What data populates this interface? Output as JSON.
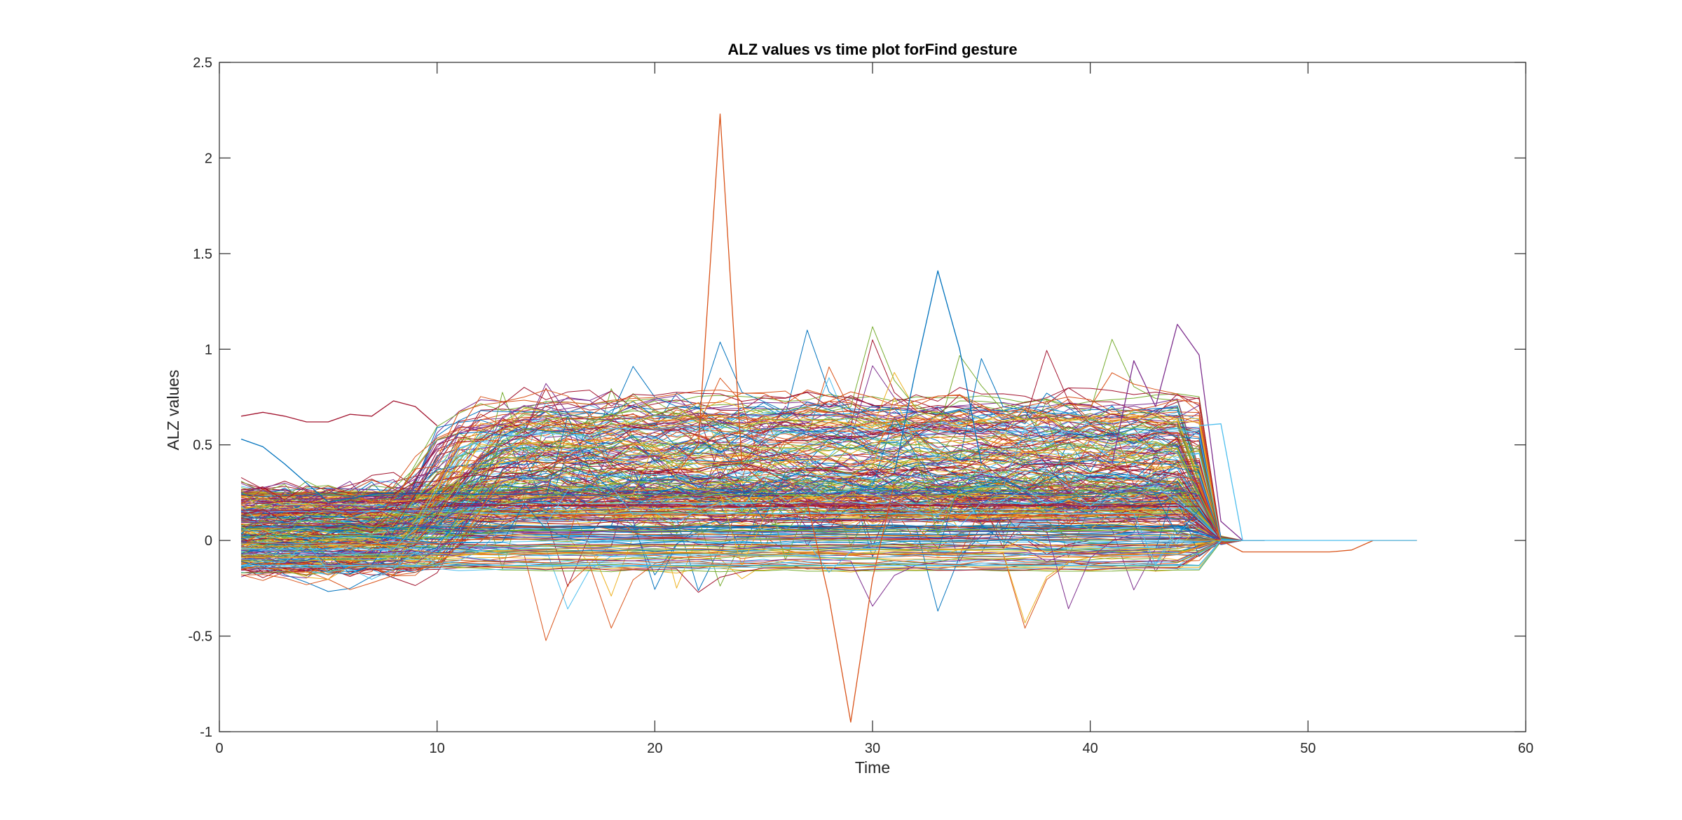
{
  "chart_data": {
    "type": "line",
    "title": "ALZ values vs time plot forFind gesture",
    "xlabel": "Time",
    "ylabel": "ALZ values",
    "xlim": [
      0,
      60
    ],
    "ylim": [
      -1,
      2.5
    ],
    "xticks": [
      "0",
      "10",
      "20",
      "30",
      "40",
      "50",
      "60"
    ],
    "yticks": [
      "-1",
      "-0.5",
      "0",
      "0.5",
      "1",
      "1.5",
      "2",
      "2.5"
    ],
    "grid": false,
    "legend": "none",
    "series_count": 300,
    "colors": [
      "#0072BD",
      "#D95319",
      "#EDB120",
      "#7E2F8E",
      "#77AC30",
      "#4DBEEE",
      "#A2142F"
    ],
    "notable_series": [
      {
        "x": [
          1,
          2,
          3,
          4,
          5,
          6,
          7,
          8,
          9,
          10
        ],
        "values": [
          0.65,
          0.67,
          0.65,
          0.62,
          0.62,
          0.66,
          0.65,
          0.73,
          0.7,
          0.6
        ],
        "color": "#A2142F"
      },
      {
        "x": [
          1,
          2,
          3,
          4,
          5,
          6,
          7,
          8
        ],
        "values": [
          0.53,
          0.49,
          0.4,
          0.3,
          0.2,
          0.22,
          0.24,
          0.25
        ],
        "color": "#0072BD"
      },
      {
        "x": [
          21,
          22,
          23,
          24,
          25
        ],
        "values": [
          0.35,
          0.5,
          2.23,
          0.4,
          0.3
        ],
        "color": "#D95319"
      },
      {
        "x": [
          27,
          28,
          29,
          30,
          31
        ],
        "values": [
          0.2,
          -0.3,
          -0.95,
          -0.2,
          0.3
        ],
        "color": "#D95319"
      },
      {
        "x": [
          31,
          32,
          33,
          34,
          35
        ],
        "values": [
          0.35,
          0.9,
          1.41,
          1.0,
          0.4
        ],
        "color": "#0072BD"
      },
      {
        "x": [
          41,
          42,
          43,
          44,
          45,
          46,
          47
        ],
        "values": [
          0.4,
          0.94,
          0.7,
          1.13,
          0.97,
          0.1,
          0.0
        ],
        "color": "#7E2F8E"
      },
      {
        "x": [
          44,
          45,
          46,
          47,
          48,
          49,
          50,
          51,
          52,
          53,
          54,
          55
        ],
        "values": [
          0.35,
          0.3,
          0.0,
          -0.06,
          -0.06,
          -0.06,
          -0.06,
          -0.06,
          -0.05,
          0.0,
          0.0,
          0.0
        ],
        "color": "#D95319"
      },
      {
        "x": [
          1,
          10,
          20,
          30,
          40,
          45,
          46,
          47
        ],
        "values": [
          -0.13,
          -0.13,
          -0.13,
          -0.13,
          -0.13,
          -0.13,
          0.0,
          0.0
        ],
        "color": "#4DBEEE"
      },
      {
        "x": [
          45,
          46,
          47,
          48,
          49,
          50,
          51,
          52,
          53,
          54,
          55
        ],
        "values": [
          0.6,
          0.61,
          0.0,
          0.0,
          0.0,
          0.0,
          0.0,
          0.0,
          0.0,
          0.0,
          0.0
        ],
        "color": "#4DBEEE"
      }
    ]
  }
}
